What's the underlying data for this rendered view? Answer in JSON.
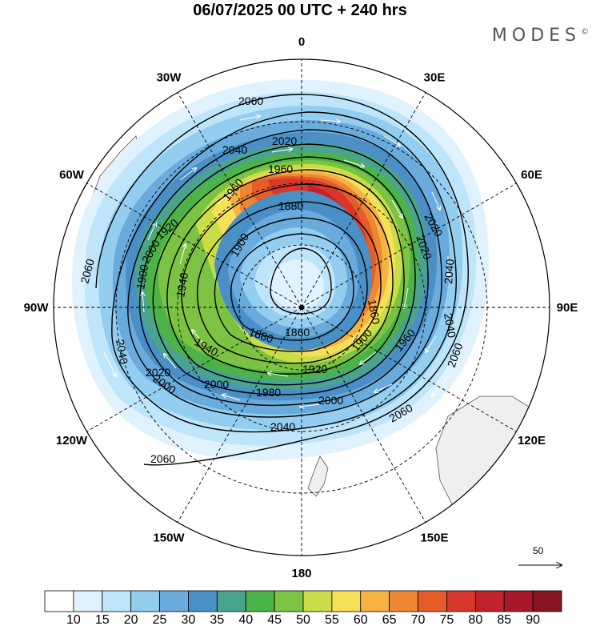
{
  "title": "06/07/2025  00 UTC  + 240 hrs",
  "brand": "MODES",
  "brand_mark": "©",
  "longitude_labels": [
    {
      "text": "0",
      "lon": 0
    },
    {
      "text": "30E",
      "lon": 30
    },
    {
      "text": "60E",
      "lon": 60
    },
    {
      "text": "90E",
      "lon": 90
    },
    {
      "text": "120E",
      "lon": 120
    },
    {
      "text": "150E",
      "lon": 150
    },
    {
      "text": "180",
      "lon": 180
    },
    {
      "text": "150W",
      "lon": -150
    },
    {
      "text": "120W",
      "lon": -120
    },
    {
      "text": "90W",
      "lon": -90
    },
    {
      "text": "60W",
      "lon": -60
    },
    {
      "text": "30W",
      "lon": -30
    }
  ],
  "contour_labels": [
    "2060",
    "2040",
    "2020",
    "1960",
    "1960",
    "1880",
    "2020",
    "1900",
    "1860",
    "1900",
    "1920",
    "2000",
    "2060",
    "2040",
    "2040",
    "2060",
    "2020",
    "2000",
    "1980",
    "1940",
    "1940",
    "1880",
    "1860",
    "1900",
    "1920",
    "2000",
    "2040",
    "2060",
    "2060",
    "2040",
    "2020",
    "2000",
    "1960"
  ],
  "colorbar": {
    "ticks": [
      "10",
      "15",
      "20",
      "25",
      "30",
      "35",
      "40",
      "45",
      "50",
      "55",
      "60",
      "65",
      "70",
      "75",
      "80",
      "85",
      "90"
    ],
    "colors": [
      "#ffffff",
      "#dff2fd",
      "#bfe5fa",
      "#93cdef",
      "#6aabdd",
      "#4a8fc5",
      "#4aa38f",
      "#4cb348",
      "#7cc243",
      "#c8dd48",
      "#f8df58",
      "#f6b344",
      "#ef8732",
      "#e55d2b",
      "#d8382a",
      "#c12229",
      "#a8182a",
      "#861520"
    ]
  },
  "reference_vector": {
    "value": "50"
  },
  "map_style": {
    "land": "#efefef",
    "coast": "#555555",
    "contour": "#000000",
    "grid": "#000000"
  }
}
